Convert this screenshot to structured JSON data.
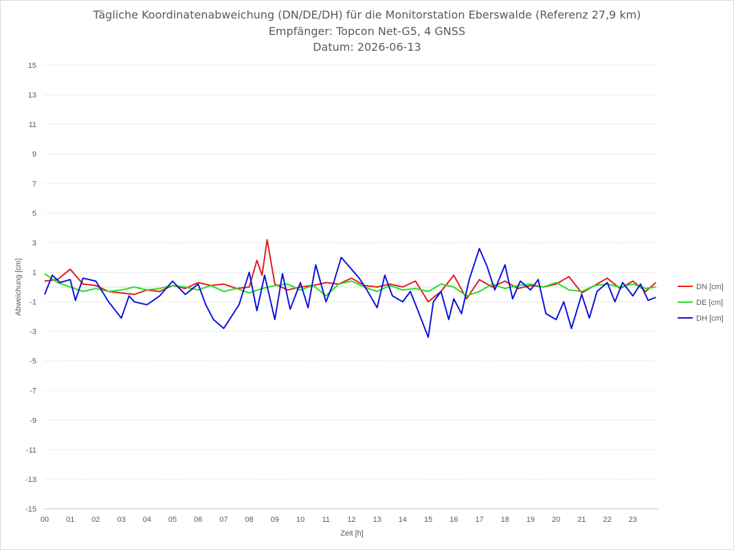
{
  "chart_data": {
    "type": "line",
    "title": "Tägliche Koordinatenabweichung (DN/DE/DH) für die Monitorstation Eberswalde (Referenz 27,9 km)",
    "subtitle": "Empfänger: Topcon Net-G5, 4 GNSS",
    "subtitle2": "Datum: 2026-06-13",
    "xlabel": "Zeit [h]",
    "ylabel": "Abweichung [cm]",
    "xlim": [
      0,
      24
    ],
    "ylim": [
      -15,
      15
    ],
    "x_ticks": [
      "00",
      "01",
      "02",
      "03",
      "04",
      "05",
      "06",
      "07",
      "08",
      "09",
      "10",
      "11",
      "12",
      "13",
      "14",
      "15",
      "16",
      "17",
      "18",
      "19",
      "20",
      "21",
      "22",
      "23"
    ],
    "y_ticks": [
      15,
      13,
      11,
      9,
      7,
      5,
      3,
      1,
      -1,
      -3,
      -5,
      -7,
      -9,
      -11,
      -13,
      -15
    ],
    "grid": true,
    "legend_position": "right",
    "series": [
      {
        "name": "DN [cm]",
        "color": "#e31a1c",
        "x": [
          0,
          0.5,
          1,
          1.5,
          2,
          2.5,
          3,
          3.5,
          4,
          4.5,
          5,
          5.5,
          6,
          6.5,
          7,
          7.5,
          8,
          8.3,
          8.5,
          8.7,
          9,
          9.5,
          10,
          10.5,
          11,
          11.5,
          12,
          12.5,
          13,
          13.5,
          14,
          14.5,
          15,
          15.5,
          16,
          16.5,
          17,
          17.5,
          18,
          18.5,
          19,
          19.5,
          20,
          20.5,
          21,
          21.5,
          22,
          22.5,
          23,
          23.5,
          23.9
        ],
        "values": [
          0.4,
          0.5,
          1.2,
          0.2,
          0.1,
          -0.3,
          -0.4,
          -0.5,
          -0.2,
          -0.3,
          0.1,
          -0.1,
          0.3,
          0.1,
          0.2,
          -0.1,
          0.0,
          1.8,
          0.8,
          3.2,
          0.2,
          -0.2,
          0.0,
          0.1,
          0.3,
          0.2,
          0.6,
          0.1,
          0.0,
          0.2,
          0.0,
          0.4,
          -1.0,
          -0.3,
          0.8,
          -0.8,
          0.5,
          0.0,
          0.4,
          -0.1,
          0.1,
          0.0,
          0.2,
          0.7,
          -0.4,
          0.1,
          0.6,
          -0.1,
          0.4,
          -0.3,
          0.3
        ]
      },
      {
        "name": "DE [cm]",
        "color": "#22e01e",
        "x": [
          0,
          0.5,
          1,
          1.5,
          2,
          2.5,
          3,
          3.5,
          4,
          4.5,
          5,
          5.5,
          6,
          6.5,
          7,
          7.5,
          8,
          8.5,
          9,
          9.5,
          10,
          10.5,
          11,
          11.5,
          12,
          12.5,
          13,
          13.5,
          14,
          14.5,
          15,
          15.5,
          16,
          16.5,
          17,
          17.5,
          18,
          18.5,
          19,
          19.5,
          20,
          20.5,
          21,
          21.5,
          22,
          22.5,
          23,
          23.5,
          23.9
        ],
        "values": [
          0.9,
          0.3,
          0.0,
          -0.3,
          -0.1,
          -0.3,
          -0.2,
          0.0,
          -0.2,
          -0.1,
          0.1,
          0.0,
          -0.2,
          0.1,
          -0.3,
          -0.1,
          -0.4,
          -0.1,
          0.1,
          0.2,
          -0.2,
          0.1,
          -0.6,
          0.2,
          0.4,
          0.0,
          -0.3,
          0.1,
          -0.2,
          -0.1,
          -0.3,
          0.2,
          0.0,
          -0.6,
          -0.3,
          0.2,
          -0.1,
          0.1,
          0.2,
          0.0,
          0.3,
          -0.2,
          -0.3,
          0.1,
          0.2,
          0.0,
          0.2,
          -0.1,
          0.0
        ]
      },
      {
        "name": "DH [cm]",
        "color": "#0b12d9",
        "x": [
          0,
          0.3,
          0.6,
          1,
          1.2,
          1.5,
          2,
          2.5,
          3,
          3.3,
          3.5,
          4,
          4.5,
          5,
          5.5,
          6,
          6.3,
          6.6,
          7,
          7.3,
          7.6,
          8,
          8.3,
          8.6,
          9,
          9.3,
          9.6,
          10,
          10.3,
          10.6,
          11,
          11.3,
          11.6,
          12,
          12.3,
          12.6,
          13,
          13.3,
          13.6,
          14,
          14.3,
          14.6,
          15,
          15.2,
          15.5,
          15.8,
          16,
          16.3,
          16.6,
          17,
          17.3,
          17.6,
          18,
          18.3,
          18.6,
          19,
          19.3,
          19.6,
          20,
          20.3,
          20.6,
          21,
          21.3,
          21.6,
          22,
          22.3,
          22.6,
          23,
          23.3,
          23.6,
          23.9
        ],
        "values": [
          -0.5,
          0.8,
          0.3,
          0.5,
          -0.9,
          0.6,
          0.4,
          -1.0,
          -2.1,
          -0.6,
          -1.0,
          -1.2,
          -0.6,
          0.4,
          -0.5,
          0.2,
          -1.2,
          -2.2,
          -2.8,
          -2.0,
          -1.2,
          1.0,
          -1.6,
          0.8,
          -2.2,
          0.9,
          -1.5,
          0.3,
          -1.4,
          1.5,
          -1.0,
          0.3,
          2.0,
          1.2,
          0.6,
          -0.2,
          -1.4,
          0.8,
          -0.6,
          -1.0,
          -0.3,
          -1.6,
          -3.4,
          -1.0,
          -0.3,
          -2.2,
          -0.8,
          -1.8,
          0.5,
          2.6,
          1.4,
          -0.2,
          1.5,
          -0.8,
          0.4,
          -0.2,
          0.5,
          -1.8,
          -2.2,
          -1.0,
          -2.8,
          -0.5,
          -2.1,
          -0.3,
          0.3,
          -1.0,
          0.3,
          -0.6,
          0.2,
          -0.9,
          -0.7
        ]
      }
    ]
  }
}
